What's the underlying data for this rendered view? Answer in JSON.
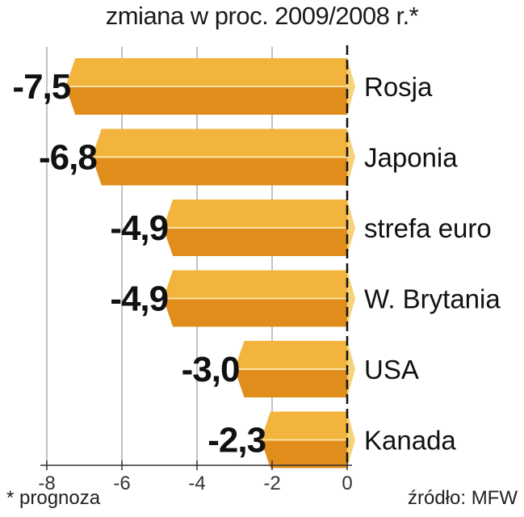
{
  "chart_data": {
    "type": "bar",
    "orientation": "horizontal",
    "title": "zmiana w proc. 2009/2008 r.*",
    "categories": [
      "Rosja",
      "Japonia",
      "strefa euro",
      "W. Brytania",
      "USA",
      "Kanada"
    ],
    "values": [
      -7.5,
      -6.8,
      -4.9,
      -4.9,
      -3.0,
      -2.3
    ],
    "value_labels": [
      "-7,5",
      "-6,8",
      "-4,9",
      "-4,9",
      "-3,0",
      "-2,3"
    ],
    "xlim": [
      -8,
      0
    ],
    "xticks": [
      -8,
      -6,
      -4,
      -2,
      0
    ],
    "xtick_labels": [
      "-8",
      "-6",
      "-4",
      "-2",
      "0"
    ],
    "xlabel": "",
    "ylabel": "",
    "grid": true,
    "legend": "none"
  },
  "footnote": "* prognoza",
  "source": "źródło: MFW",
  "colors": {
    "bar_top": "#f2b43c",
    "bar_bottom": "#e08d1c",
    "bar_cap": "#f7d27a",
    "grid": "#9a9a9a",
    "zero_line": "#111111"
  }
}
